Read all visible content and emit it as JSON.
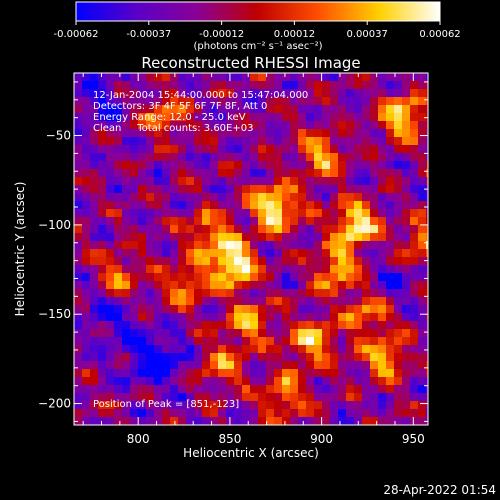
{
  "chart_data": {
    "type": "heatmap",
    "title": "Reconstructed RHESSI Image",
    "xlabel": "Heliocentric X (arcsec)",
    "ylabel": "Heliocentric Y (arcsec)",
    "xlim": [
      765,
      958
    ],
    "ylim": [
      -212,
      -15
    ],
    "xticks": [
      800,
      850,
      900,
      950
    ],
    "yticks": [
      -50,
      -100,
      -150,
      -200
    ],
    "colorbar": {
      "ticks": [
        "-0.00062",
        "-0.00037",
        "-0.00012",
        "0.00012",
        "0.00037",
        "0.00062"
      ],
      "range": [
        -0.00062,
        0.00062
      ],
      "unit_label": "(photons cm⁻² s⁻¹ asec⁻²)",
      "colors": [
        "#0000ff",
        "#5a00c8",
        "#8a0096",
        "#c00000",
        "#ff5000",
        "#ffd000",
        "#ffffff"
      ]
    },
    "info_lines": [
      "12-Jan-2004 15:44:00.000 to 15:47:04.000",
      "Detectors: 3F 4F 5F 6F 7F 8F, Att 0",
      "Energy Range: 12.0 - 25.0 keV",
      "Clean     Total counts: 3.60E+03"
    ],
    "peak_label": "Position of Peak = [851,-123]",
    "hotspots": [
      {
        "x": 852,
        "y": -122,
        "amp": 1.0
      },
      {
        "x": 874,
        "y": -90,
        "amp": 0.95
      },
      {
        "x": 918,
        "y": -100,
        "amp": 0.9
      },
      {
        "x": 908,
        "y": -125,
        "amp": 0.7
      },
      {
        "x": 838,
        "y": -105,
        "amp": 0.6
      },
      {
        "x": 825,
        "y": -135,
        "amp": 0.55
      },
      {
        "x": 860,
        "y": -155,
        "amp": 0.6
      },
      {
        "x": 895,
        "y": -165,
        "amp": 0.7
      },
      {
        "x": 935,
        "y": -175,
        "amp": 0.6
      },
      {
        "x": 925,
        "y": -150,
        "amp": 0.55
      },
      {
        "x": 945,
        "y": -40,
        "amp": 0.8
      },
      {
        "x": 900,
        "y": -60,
        "amp": 0.6
      },
      {
        "x": 815,
        "y": -40,
        "amp": 0.55
      },
      {
        "x": 790,
        "y": -130,
        "amp": 0.55
      },
      {
        "x": 880,
        "y": -195,
        "amp": 0.6
      },
      {
        "x": 845,
        "y": -180,
        "amp": 0.5
      },
      {
        "x": 955,
        "y": -110,
        "amp": 0.55
      }
    ],
    "coldspots": [
      {
        "x": 810,
        "y": -175,
        "amp": 0.9
      },
      {
        "x": 785,
        "y": -150,
        "amp": 0.6
      },
      {
        "x": 780,
        "y": -30,
        "amp": 0.5
      },
      {
        "x": 940,
        "y": -130,
        "amp": 0.4
      }
    ]
  },
  "timestamp": "28-Apr-2022 01:54"
}
